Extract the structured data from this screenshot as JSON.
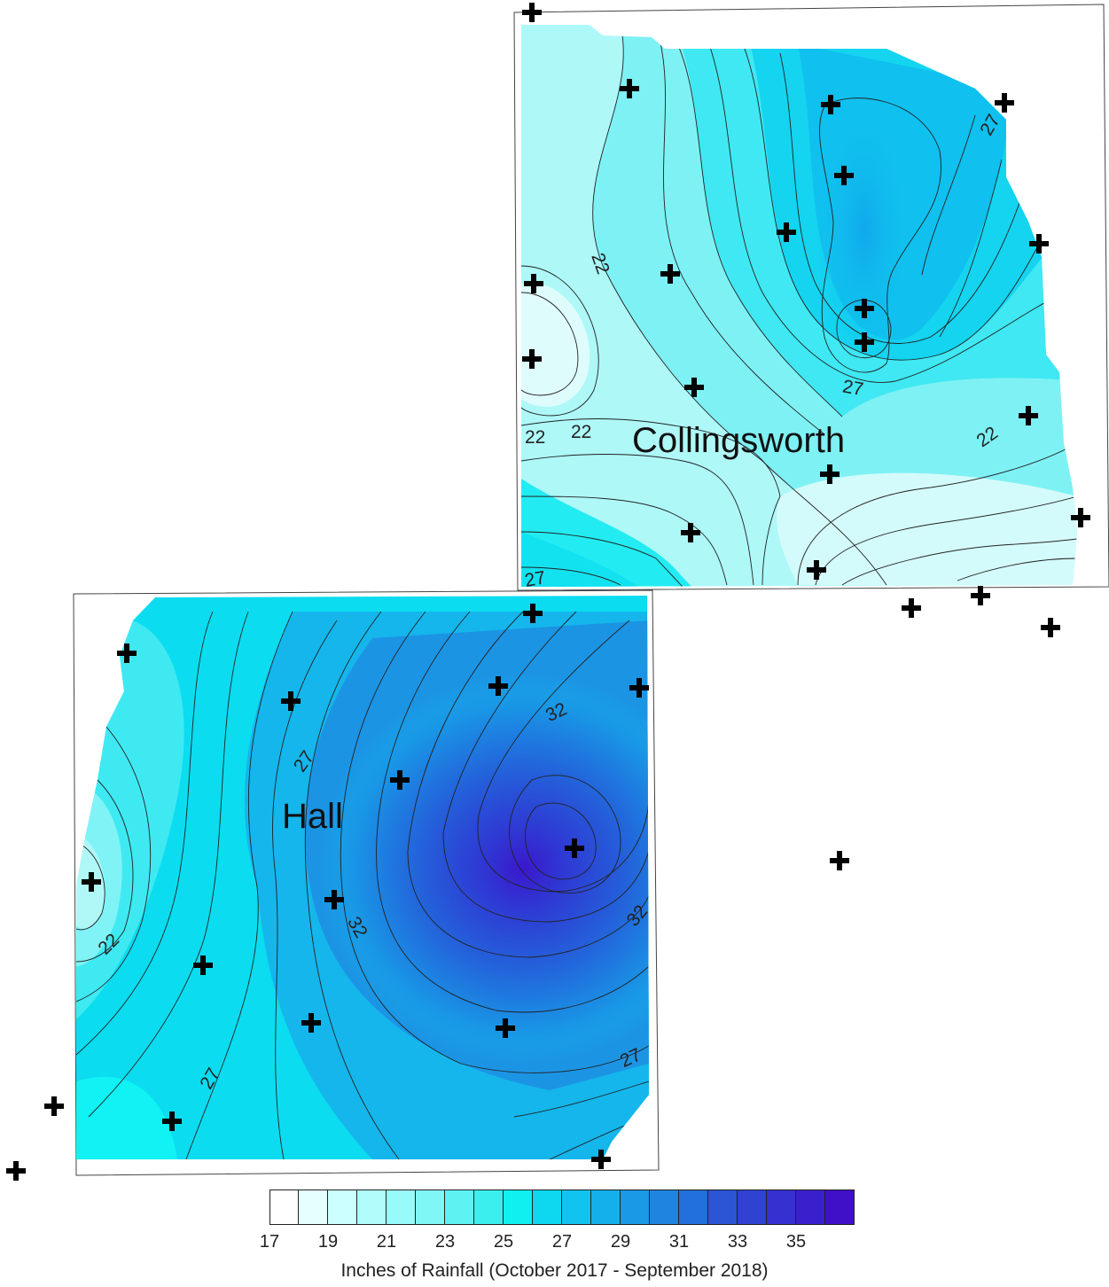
{
  "counties": [
    {
      "name": "Collingsworth"
    },
    {
      "name": "Hall"
    }
  ],
  "contour_labels": [
    "22",
    "22",
    "22",
    "22",
    "27",
    "27",
    "27",
    "22",
    "27",
    "32",
    "32",
    "32",
    "27",
    "27"
  ],
  "legend": {
    "title": "Inches of Rainfall (October 2017 - September 2018)",
    "ticks": [
      "17",
      "19",
      "21",
      "23",
      "25",
      "27",
      "29",
      "31",
      "33",
      "35"
    ],
    "colors": [
      "#ffffff",
      "#e6ffff",
      "#ccffff",
      "#b3fcfc",
      "#99fafa",
      "#80f7f7",
      "#5ef2f2",
      "#3cefef",
      "#0ff0f0",
      "#0dd8f0",
      "#10c4ef",
      "#14b0ec",
      "#1a99e6",
      "#1e84e0",
      "#2270db",
      "#2a56d6",
      "#2f42d2",
      "#3530cf",
      "#3a20cc",
      "#4010c8"
    ]
  },
  "station_marker": "plus-icon"
}
